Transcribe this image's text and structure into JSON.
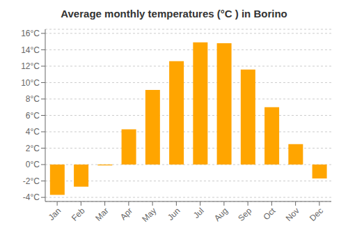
{
  "chart_data": {
    "type": "bar",
    "title": "Average monthly temperatures (°C ) in Borino",
    "categories": [
      "Jan",
      "Feb",
      "Mar",
      "Apr",
      "May",
      "Jun",
      "Jul",
      "Aug",
      "Sep",
      "Oct",
      "Nov",
      "Dec"
    ],
    "values": [
      -3.7,
      -2.7,
      -0.1,
      4.3,
      9.1,
      12.6,
      14.9,
      14.8,
      11.6,
      7.0,
      2.5,
      -1.7
    ],
    "color": "#FFA500",
    "ylim": [
      -4.5,
      16.5
    ],
    "yticks": [
      {
        "value": -4,
        "label": "-4°C"
      },
      {
        "value": -2,
        "label": "-2°C"
      },
      {
        "value": 0,
        "label": "0°C"
      },
      {
        "value": 2,
        "label": "2°C"
      },
      {
        "value": 4,
        "label": "4°C"
      },
      {
        "value": 6,
        "label": "6°C"
      },
      {
        "value": 8,
        "label": "8°C"
      },
      {
        "value": 10,
        "label": "10°C"
      },
      {
        "value": 12,
        "label": "12°C"
      },
      {
        "value": 14,
        "label": "14°C"
      },
      {
        "value": 16,
        "label": "16°C"
      }
    ],
    "grid": true
  }
}
